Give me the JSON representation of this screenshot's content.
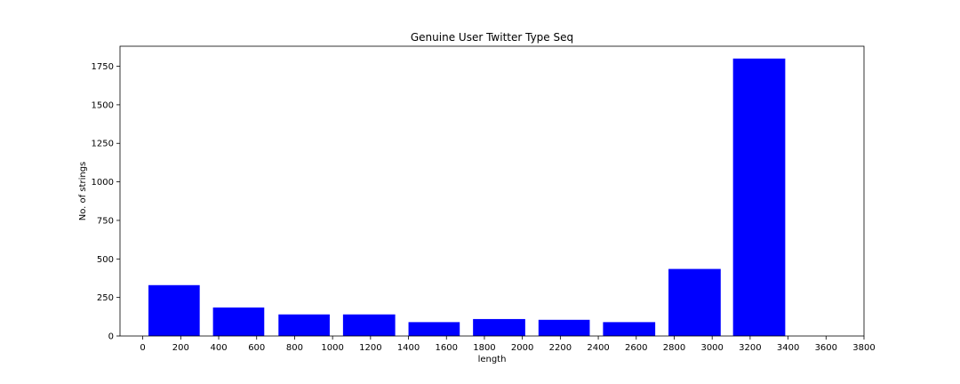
{
  "chart_data": {
    "type": "bar",
    "title": "Genuine User Twitter Type Seq",
    "xlabel": "length",
    "ylabel": "No. of strings",
    "bar_color": "#0000ff",
    "bars": [
      {
        "x_start": 30,
        "x_end": 300,
        "value": 330
      },
      {
        "x_start": 370,
        "x_end": 640,
        "value": 185
      },
      {
        "x_start": 715,
        "x_end": 985,
        "value": 140
      },
      {
        "x_start": 1055,
        "x_end": 1330,
        "value": 140
      },
      {
        "x_start": 1400,
        "x_end": 1670,
        "value": 90
      },
      {
        "x_start": 1740,
        "x_end": 2015,
        "value": 110
      },
      {
        "x_start": 2085,
        "x_end": 2355,
        "value": 105
      },
      {
        "x_start": 2425,
        "x_end": 2700,
        "value": 90
      },
      {
        "x_start": 2770,
        "x_end": 3045,
        "value": 435
      },
      {
        "x_start": 3110,
        "x_end": 3385,
        "value": 1800
      }
    ],
    "xlim": [
      -120,
      3800
    ],
    "ylim": [
      0,
      1880
    ],
    "xticks": [
      0,
      200,
      400,
      600,
      800,
      1000,
      1200,
      1400,
      1600,
      1800,
      2000,
      2200,
      2400,
      2600,
      2800,
      3000,
      3200,
      3400,
      3600,
      3800
    ],
    "yticks": [
      0,
      250,
      500,
      750,
      1000,
      1250,
      1500,
      1750
    ],
    "grid": false,
    "legend": "none"
  }
}
